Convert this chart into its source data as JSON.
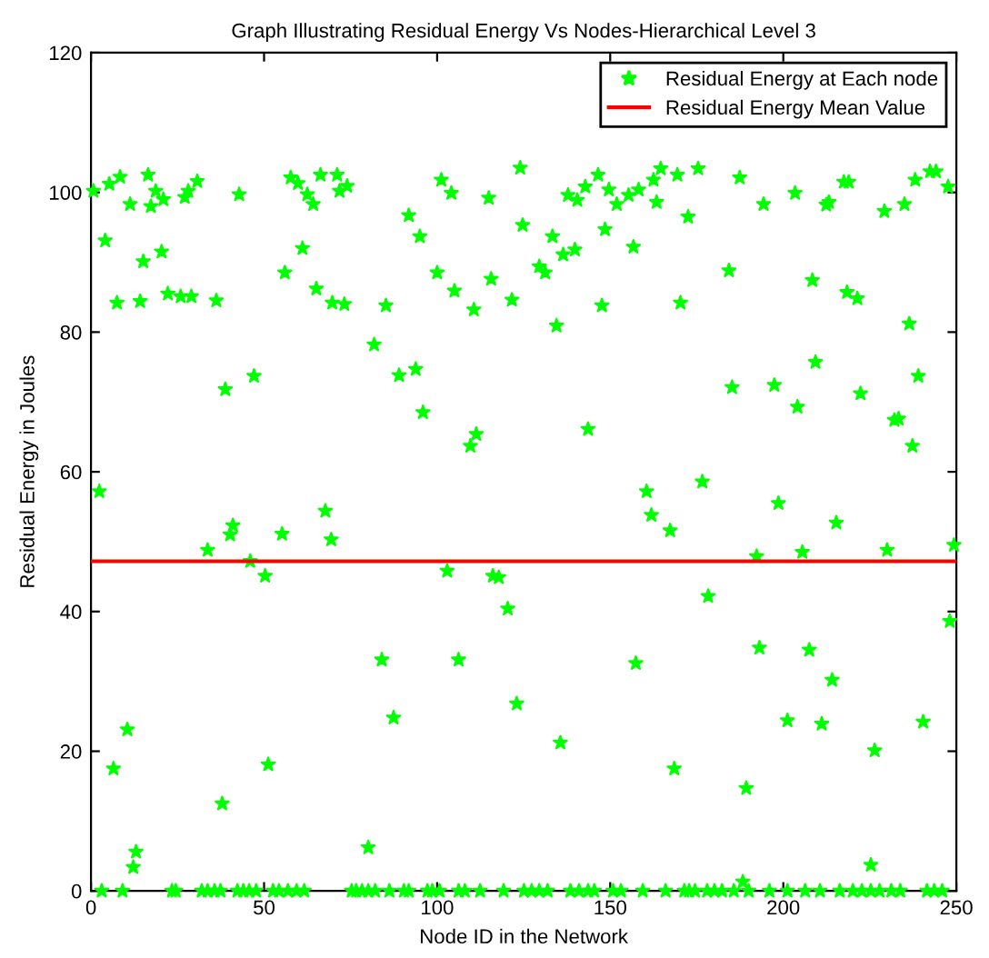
{
  "chart_data": {
    "type": "scatter",
    "title": "Graph Illustrating Residual Energy Vs Nodes-Hierarchical Level 3",
    "xlabel": "Node ID in the Network",
    "ylabel": "Residual Energy in Joules",
    "xlim": [
      0,
      250
    ],
    "ylim": [
      0,
      120
    ],
    "xticks": [
      0,
      50,
      100,
      150,
      200,
      250
    ],
    "yticks": [
      0,
      20,
      40,
      60,
      80,
      100,
      120
    ],
    "grid": false,
    "legend": "top right",
    "marker": "star",
    "series": [
      {
        "name": "Residual Energy at Each node",
        "color": "#00ff00",
        "x": [
          0.7,
          4.1,
          5.3,
          7.5,
          8.4,
          11.3,
          14.2,
          15.1,
          16.5,
          17.3,
          18.7,
          20.4,
          20.9,
          22.2,
          25.9,
          27.1,
          28.1,
          29.0,
          30.7,
          36.2,
          38.8,
          42.8,
          47.1,
          56.0,
          57.7,
          59.8,
          61.1,
          62.5,
          64.2,
          65.1,
          66.3,
          69.7,
          71.1,
          71.8,
          73.2,
          74.0,
          81.8,
          85.2,
          89.0,
          91.8,
          93.8,
          95.0,
          95.9,
          100.0,
          101.2,
          104.1,
          105.0,
          109.6,
          111.3,
          110.6,
          114.9,
          115.6,
          121.6,
          124.0,
          124.7,
          133.3,
          134.5,
          129.5,
          131.2,
          136.4,
          137.8,
          139.8,
          140.5,
          142.8,
          143.6,
          146.5,
          147.6,
          148.5,
          149.6,
          151.9,
          155.3,
          156.7,
          158.2,
          162.5,
          163.4,
          164.6,
          169.4,
          170.3,
          172.5,
          175.4,
          184.3,
          185.2,
          187.4,
          194.3,
          197.4,
          203.4,
          204.1,
          208.4,
          209.3,
          212.4,
          213.2,
          217.5,
          218.4,
          218.9,
          221.4,
          222.3,
          229.2,
          232.1,
          233.3,
          235.0,
          236.4,
          238.1,
          239.0,
          237.3,
          242.4,
          244.1,
          247.6,
          2.4,
          6.5,
          10.5,
          13.0,
          12.2,
          33.7,
          37.9,
          40.2,
          41.0,
          46.0,
          50.3,
          51.2,
          55.2,
          67.7,
          69.4,
          80.1,
          84.0,
          87.4,
          102.9,
          106.2,
          116.1,
          117.8,
          120.4,
          123.0,
          135.6,
          157.4,
          160.5,
          161.9,
          167.3,
          168.5,
          176.6,
          178.3,
          189.3,
          192.3,
          193.1,
          198.6,
          201.2,
          205.5,
          207.5,
          211.1,
          214.1,
          215.3,
          226.4,
          225.3,
          230.0,
          240.4,
          248.1,
          249.3,
          188.3,
          3.1,
          9.1,
          23.4,
          24.5,
          32.0,
          33.7,
          35.7,
          37.4,
          42.3,
          44.0,
          45.7,
          47.7,
          52.6,
          54.3,
          56.9,
          59.4,
          61.6,
          75.3,
          76.6,
          78.3,
          80.1,
          82.1,
          86.2,
          90.4,
          91.8,
          97.2,
          98.6,
          100.7,
          106.2,
          108.0,
          112.4,
          119.2,
          125.1,
          127.3,
          129.5,
          131.9,
          138.5,
          141.0,
          143.6,
          145.4,
          150.8,
          153.1,
          159.4,
          166.0,
          171.4,
          172.8,
          174.5,
          178.0,
          180.1,
          182.3,
          185.7,
          190.0,
          196.0,
          201.2,
          206.3,
          210.6,
          216.3,
          220.1,
          222.7,
          225.3,
          227.8,
          231.2,
          233.8,
          241.5,
          243.6,
          245.9
        ],
        "values": [
          100.2,
          93.1,
          101.2,
          84.2,
          102.2,
          98.3,
          84.4,
          90.1,
          102.5,
          98.0,
          100.2,
          91.5,
          99.0,
          85.5,
          85.1,
          99.3,
          100.2,
          85.1,
          101.6,
          84.5,
          71.8,
          99.7,
          73.7,
          88.5,
          102.1,
          101.3,
          92.0,
          99.7,
          98.3,
          86.2,
          102.5,
          84.2,
          102.5,
          100.2,
          84.0,
          100.9,
          78.2,
          83.8,
          73.8,
          96.7,
          74.7,
          93.7,
          68.5,
          88.5,
          101.8,
          99.9,
          85.9,
          63.7,
          65.4,
          83.2,
          99.2,
          87.6,
          84.6,
          103.5,
          95.3,
          93.7,
          80.9,
          89.4,
          88.5,
          91.1,
          99.6,
          91.8,
          98.9,
          100.8,
          66.1,
          102.5,
          83.8,
          94.7,
          100.4,
          98.3,
          99.6,
          92.2,
          100.4,
          101.8,
          98.6,
          103.4,
          102.5,
          84.2,
          96.5,
          103.4,
          88.8,
          72.1,
          102.1,
          98.3,
          72.4,
          99.9,
          69.3,
          87.4,
          75.7,
          98.2,
          98.6,
          101.5,
          85.7,
          101.5,
          84.8,
          71.2,
          97.3,
          67.4,
          67.6,
          98.3,
          81.2,
          101.8,
          73.7,
          63.7,
          103.0,
          103.0,
          100.8,
          57.2,
          17.5,
          23.1,
          5.6,
          3.4,
          48.8,
          12.5,
          51.0,
          52.3,
          47.2,
          45.1,
          18.1,
          51.1,
          54.4,
          50.3,
          6.2,
          33.1,
          24.8,
          45.8,
          33.1,
          45.1,
          44.9,
          40.4,
          26.8,
          21.2,
          32.6,
          57.2,
          53.8,
          51.6,
          17.5,
          58.6,
          42.2,
          14.7,
          47.9,
          34.8,
          55.5,
          24.4,
          48.5,
          34.5,
          23.9,
          30.2,
          52.7,
          20.1,
          3.7,
          48.8,
          24.2,
          38.6,
          49.5,
          1.3,
          0,
          0,
          0,
          0,
          0,
          0,
          0,
          0,
          0,
          0,
          0,
          0,
          0,
          0,
          0,
          0,
          0,
          0,
          0,
          0,
          0,
          0,
          0,
          0,
          0,
          0,
          0,
          0,
          0,
          0,
          0,
          0,
          0,
          0,
          0,
          0,
          0,
          0,
          0,
          0,
          0,
          0,
          0,
          0,
          0,
          0,
          0,
          0,
          0,
          0,
          0,
          0,
          0,
          0,
          0,
          0,
          0,
          0,
          0,
          0,
          0,
          0,
          0,
          0,
          0,
          0
        ]
      },
      {
        "name": "Residual Energy Mean Value",
        "color": "#ff0000",
        "type": "line",
        "marker": "none",
        "x": [
          0,
          250
        ],
        "values": [
          47.2,
          47.2
        ]
      }
    ]
  }
}
